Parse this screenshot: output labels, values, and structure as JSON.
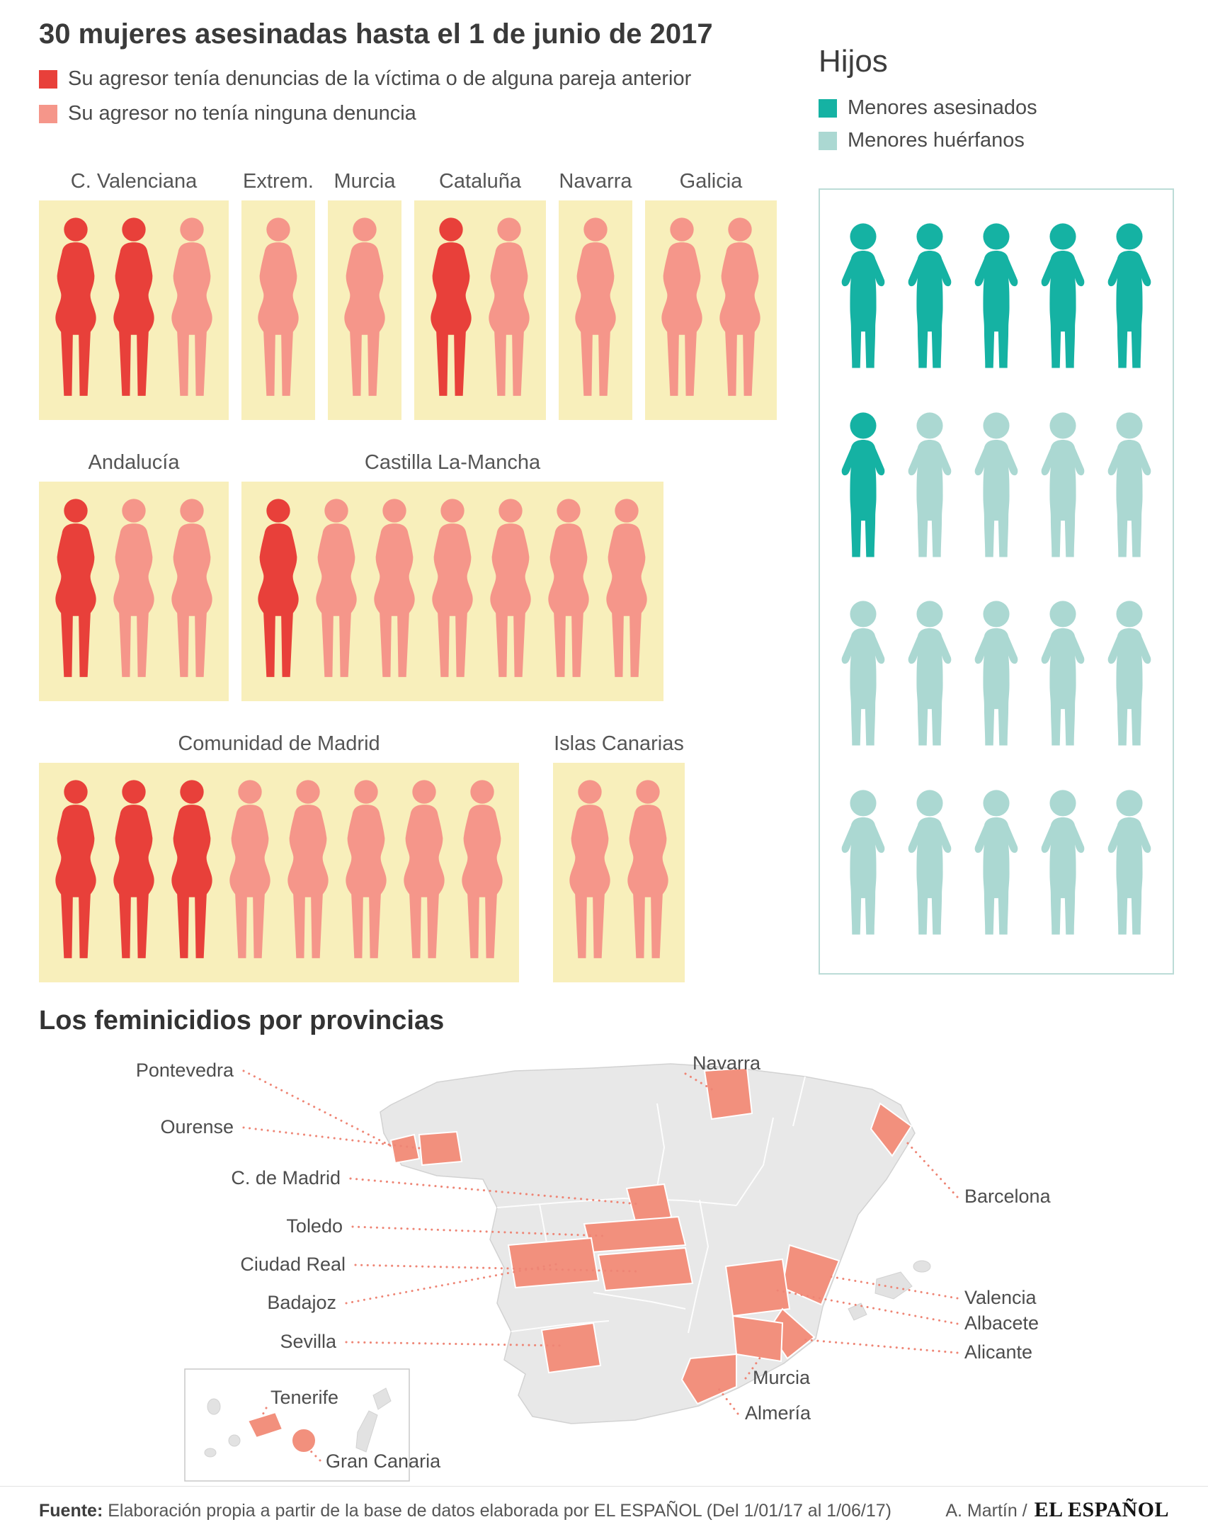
{
  "palette": {
    "red": "#e8403a",
    "salmon": "#f5968a",
    "teal": "#15b2a3",
    "light_teal": "#abd8d2",
    "box_yellow": "#f8efbb",
    "map_highlight": "#f2907d",
    "leader_line": "#ee8575"
  },
  "header": {
    "title": "30 mujeres asesinadas hasta el 1 de junio de 2017",
    "legend": [
      {
        "label": "Su agresor tenía denuncias de la víctima o de alguna pareja anterior",
        "color": "red"
      },
      {
        "label": "Su agresor no tenía ninguna denuncia",
        "color": "salmon"
      }
    ]
  },
  "hijos": {
    "title": "Hijos",
    "legend": [
      {
        "label": "Menores asesinados",
        "color": "teal"
      },
      {
        "label": "Menores huérfanos",
        "color": "light_teal"
      }
    ]
  },
  "map": {
    "title": "Los feminicidios por provincias",
    "labels": {
      "pontevedra": "Pontevedra",
      "ourense": "Ourense",
      "madrid": "C. de Madrid",
      "toledo": "Toledo",
      "ciudad_real": "Ciudad Real",
      "badajoz": "Badajoz",
      "sevilla": "Sevilla",
      "navarra": "Navarra",
      "barcelona": "Barcelona",
      "valencia": "Valencia",
      "albacete": "Albacete",
      "alicante": "Alicante",
      "murcia": "Murcia",
      "almeria": "Almería",
      "tenerife": "Tenerife",
      "gran_canaria": "Gran Canaria"
    }
  },
  "footer": {
    "fuente_label": "Fuente:",
    "fuente_text": "Elaboración propia a partir de la base de datos elaborada por EL ESPAÑOL (Del 1/01/17 al 1/06/17)",
    "credit_author": "A. Martín /",
    "credit_brand": "EL ESPAÑOL"
  },
  "chart_data": [
    {
      "type": "pictogram",
      "title": "30 mujeres asesinadas hasta el 1 de junio de 2017",
      "unit_categories": [
        "Su agresor tenía denuncias de la víctima o de alguna pareja anterior",
        "Su agresor no tenía ninguna denuncia"
      ],
      "total": 30,
      "regions": [
        {
          "id": "c_valenciana",
          "name": "C. Valenciana",
          "row": 1,
          "con_denuncia": 2,
          "sin_denuncia": 1,
          "total": 3
        },
        {
          "id": "extremadura",
          "name": "Extrem.",
          "row": 1,
          "con_denuncia": 0,
          "sin_denuncia": 1,
          "total": 1
        },
        {
          "id": "murcia",
          "name": "Murcia",
          "row": 1,
          "con_denuncia": 0,
          "sin_denuncia": 1,
          "total": 1
        },
        {
          "id": "cataluna",
          "name": "Cataluña",
          "row": 1,
          "con_denuncia": 1,
          "sin_denuncia": 1,
          "total": 2
        },
        {
          "id": "navarra",
          "name": "Navarra",
          "row": 1,
          "con_denuncia": 0,
          "sin_denuncia": 1,
          "total": 1
        },
        {
          "id": "galicia",
          "name": "Galicia",
          "row": 1,
          "con_denuncia": 0,
          "sin_denuncia": 2,
          "total": 2
        },
        {
          "id": "andalucia",
          "name": "Andalucía",
          "row": 2,
          "con_denuncia": 1,
          "sin_denuncia": 2,
          "total": 3
        },
        {
          "id": "castilla_la_mancha",
          "name": "Castilla La-Mancha",
          "row": 2,
          "con_denuncia": 1,
          "sin_denuncia": 6,
          "total": 7
        },
        {
          "id": "comunidad_de_madrid",
          "name": "Comunidad de Madrid",
          "row": 3,
          "con_denuncia": 3,
          "sin_denuncia": 5,
          "total": 8
        },
        {
          "id": "islas_canarias",
          "name": "Islas Canarias",
          "row": 3,
          "con_denuncia": 0,
          "sin_denuncia": 2,
          "total": 2
        }
      ]
    },
    {
      "type": "pictogram",
      "title": "Hijos",
      "series": [
        {
          "name": "Menores asesinados",
          "value": 6
        },
        {
          "name": "Menores huérfanos",
          "value": 14
        }
      ],
      "per_row": 5,
      "total": 20
    },
    {
      "type": "map",
      "title": "Los feminicidios por provincias",
      "highlighted_provinces": [
        "Pontevedra",
        "Ourense",
        "Navarra",
        "Barcelona",
        "C. de Madrid",
        "Toledo",
        "Ciudad Real",
        "Badajoz",
        "Sevilla",
        "Valencia",
        "Albacete",
        "Alicante",
        "Murcia",
        "Almería",
        "Tenerife",
        "Gran Canaria"
      ]
    }
  ]
}
